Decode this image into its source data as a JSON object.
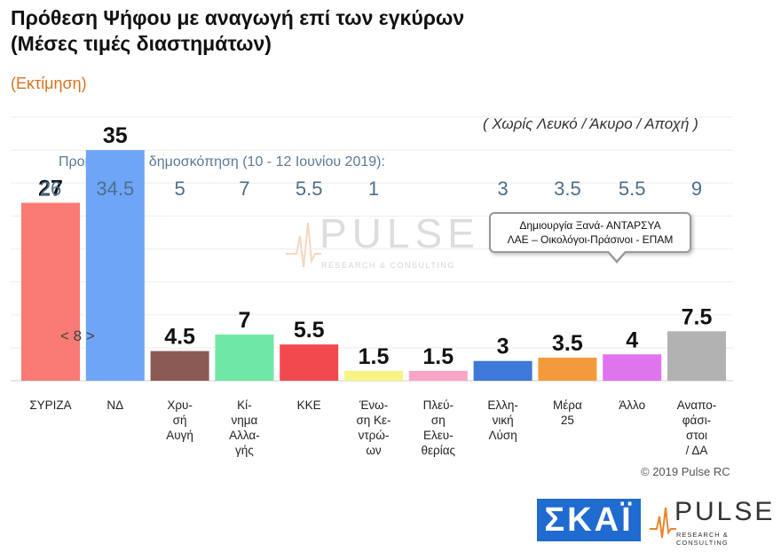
{
  "title_line1": "Πρόθεση Ψήφου με αναγωγή επί των εγκύρων",
  "title_line2": "(Μέσες τιμές διαστημάτων)",
  "subtitle": "(Εκτίμηση)",
  "note": "( Χωρίς Λευκό / Άκυρο / Αποχή )",
  "previous_label": "Προηγούμενη δημοσκόπηση (10 - 12 Ιουνίου 2019):",
  "callout_line1": "Δημιουργία Ξανά-  ΑΝΤΑΡΣΥΑ",
  "callout_line2": "ΛΑΕ – Οικολόγοι-Πράσινοι - ΕΠΑΜ",
  "watermark_big": "PULSE",
  "watermark_small": "RESEARCH & CONSULTING",
  "pager": "< 8 >",
  "copyright": "© 2019 Pulse RC",
  "logo_skai": "ΣΚΑΪ",
  "logo_pulse": "PULSE",
  "logo_pulse_sub": "RESEARCH & CONSULTING",
  "chart_data": {
    "type": "bar",
    "categories": [
      [
        "ΣΥΡΙΖΑ"
      ],
      [
        "ΝΔ"
      ],
      [
        "Χρυ-",
        "σή",
        "Αυγή"
      ],
      [
        "Κί-",
        "νημα",
        "Αλλα-",
        "γής"
      ],
      [
        "ΚΚΕ"
      ],
      [
        "Ένω-",
        "ση Κε-",
        "ντρώ-",
        "ων"
      ],
      [
        "Πλεύ-",
        "ση",
        "Ελευ-",
        "θερίας"
      ],
      [
        "Ελλη-",
        "νική",
        "Λύση"
      ],
      [
        "Μέρα",
        "25"
      ],
      [
        "Άλλο"
      ],
      [
        "Αναπο-",
        "φάσι-",
        "στοι",
        "/ ΔΑ"
      ]
    ],
    "series": [
      {
        "name": "",
        "values": [
          27,
          35,
          4.5,
          7,
          5.5,
          1.5,
          1.5,
          3,
          3.5,
          4,
          7.5
        ],
        "labels": [
          "27",
          "35",
          "4.5",
          "7",
          "5.5",
          "1.5",
          "1.5",
          "3",
          "3.5",
          "4",
          "7.5"
        ]
      },
      {
        "name": "Προηγούμενη δημοσκόπηση (10 - 12 Ιουνίου 2019):",
        "values": [
          26,
          34.5,
          5,
          7,
          5.5,
          1,
          null,
          3,
          3.5,
          5.5,
          9
        ],
        "labels": [
          "26",
          "34.5",
          "5",
          "7",
          "5.5",
          "1",
          "",
          "3",
          "3.5",
          "5.5",
          "9"
        ]
      }
    ],
    "colors": [
      "#fa7a75",
      "#6ea5f7",
      "#8c5a54",
      "#6ee8a4",
      "#f2494f",
      "#f6f486",
      "#f7a6c8",
      "#3f78d6",
      "#f59a3b",
      "#e074ee",
      "#b2b2b2"
    ],
    "ylim": [
      0,
      40
    ],
    "grid": true
  }
}
